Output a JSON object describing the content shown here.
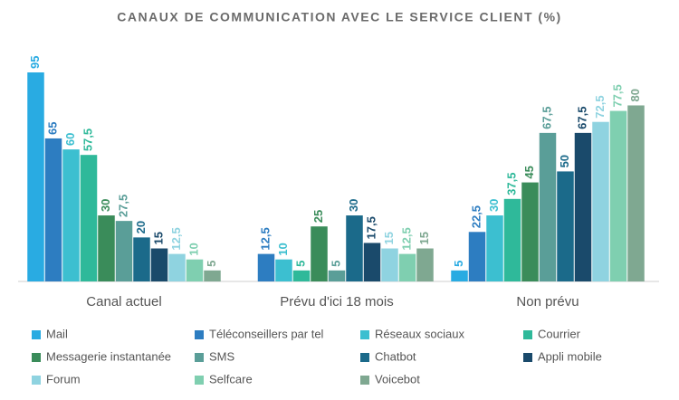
{
  "chart_data": {
    "type": "bar",
    "title": "CANAUX DE COMMUNICATION AVEC LE SERVICE CLIENT (%)",
    "categories": [
      "Canal actuel",
      "Prévu d'ici 18 mois",
      "Non prévu"
    ],
    "series": [
      {
        "name": "Mail",
        "color": "#29abe2",
        "values": [
          95,
          null,
          5
        ],
        "value_labels": [
          "95",
          null,
          "5"
        ]
      },
      {
        "name": "Téléconseillers par tel",
        "color": "#2d7dc1",
        "values": [
          65,
          12.5,
          22.5
        ],
        "value_labels": [
          "65",
          "12,5",
          "22,5"
        ]
      },
      {
        "name": "Réseaux sociaux",
        "color": "#3cbfd0",
        "values": [
          60,
          10,
          30
        ],
        "value_labels": [
          "60",
          "10",
          "30"
        ]
      },
      {
        "name": "Courrier",
        "color": "#2fb99a",
        "values": [
          57.5,
          5,
          37.5
        ],
        "value_labels": [
          "57,5",
          "5",
          "37,5"
        ]
      },
      {
        "name": "Messagerie instantanée",
        "color": "#3a8c5a",
        "values": [
          30,
          25,
          45
        ],
        "value_labels": [
          "30",
          "25",
          "45"
        ]
      },
      {
        "name": "SMS",
        "color": "#5a9e98",
        "values": [
          27.5,
          5,
          67.5
        ],
        "value_labels": [
          "27,5",
          "5",
          "67,5"
        ]
      },
      {
        "name": "Chatbot",
        "color": "#1b6a8a",
        "values": [
          20,
          30,
          50
        ],
        "value_labels": [
          "20",
          "30",
          "50"
        ]
      },
      {
        "name": "Appli mobile",
        "color": "#1a4a6b",
        "values": [
          15,
          17.5,
          67.5
        ],
        "value_labels": [
          "15",
          "17,5",
          "67,5"
        ]
      },
      {
        "name": "Forum",
        "color": "#8fd3e0",
        "values": [
          12.5,
          15,
          72.5
        ],
        "value_labels": [
          "12,5",
          "15",
          "72,5"
        ]
      },
      {
        "name": "Selfcare",
        "color": "#7fcfb0",
        "values": [
          10,
          12.5,
          77.5
        ],
        "value_labels": [
          "10",
          "12,5",
          "77,5"
        ]
      },
      {
        "name": "Voicebot",
        "color": "#7fa891",
        "values": [
          5,
          15,
          80
        ],
        "value_labels": [
          "5",
          "15",
          "80"
        ]
      }
    ]
  }
}
